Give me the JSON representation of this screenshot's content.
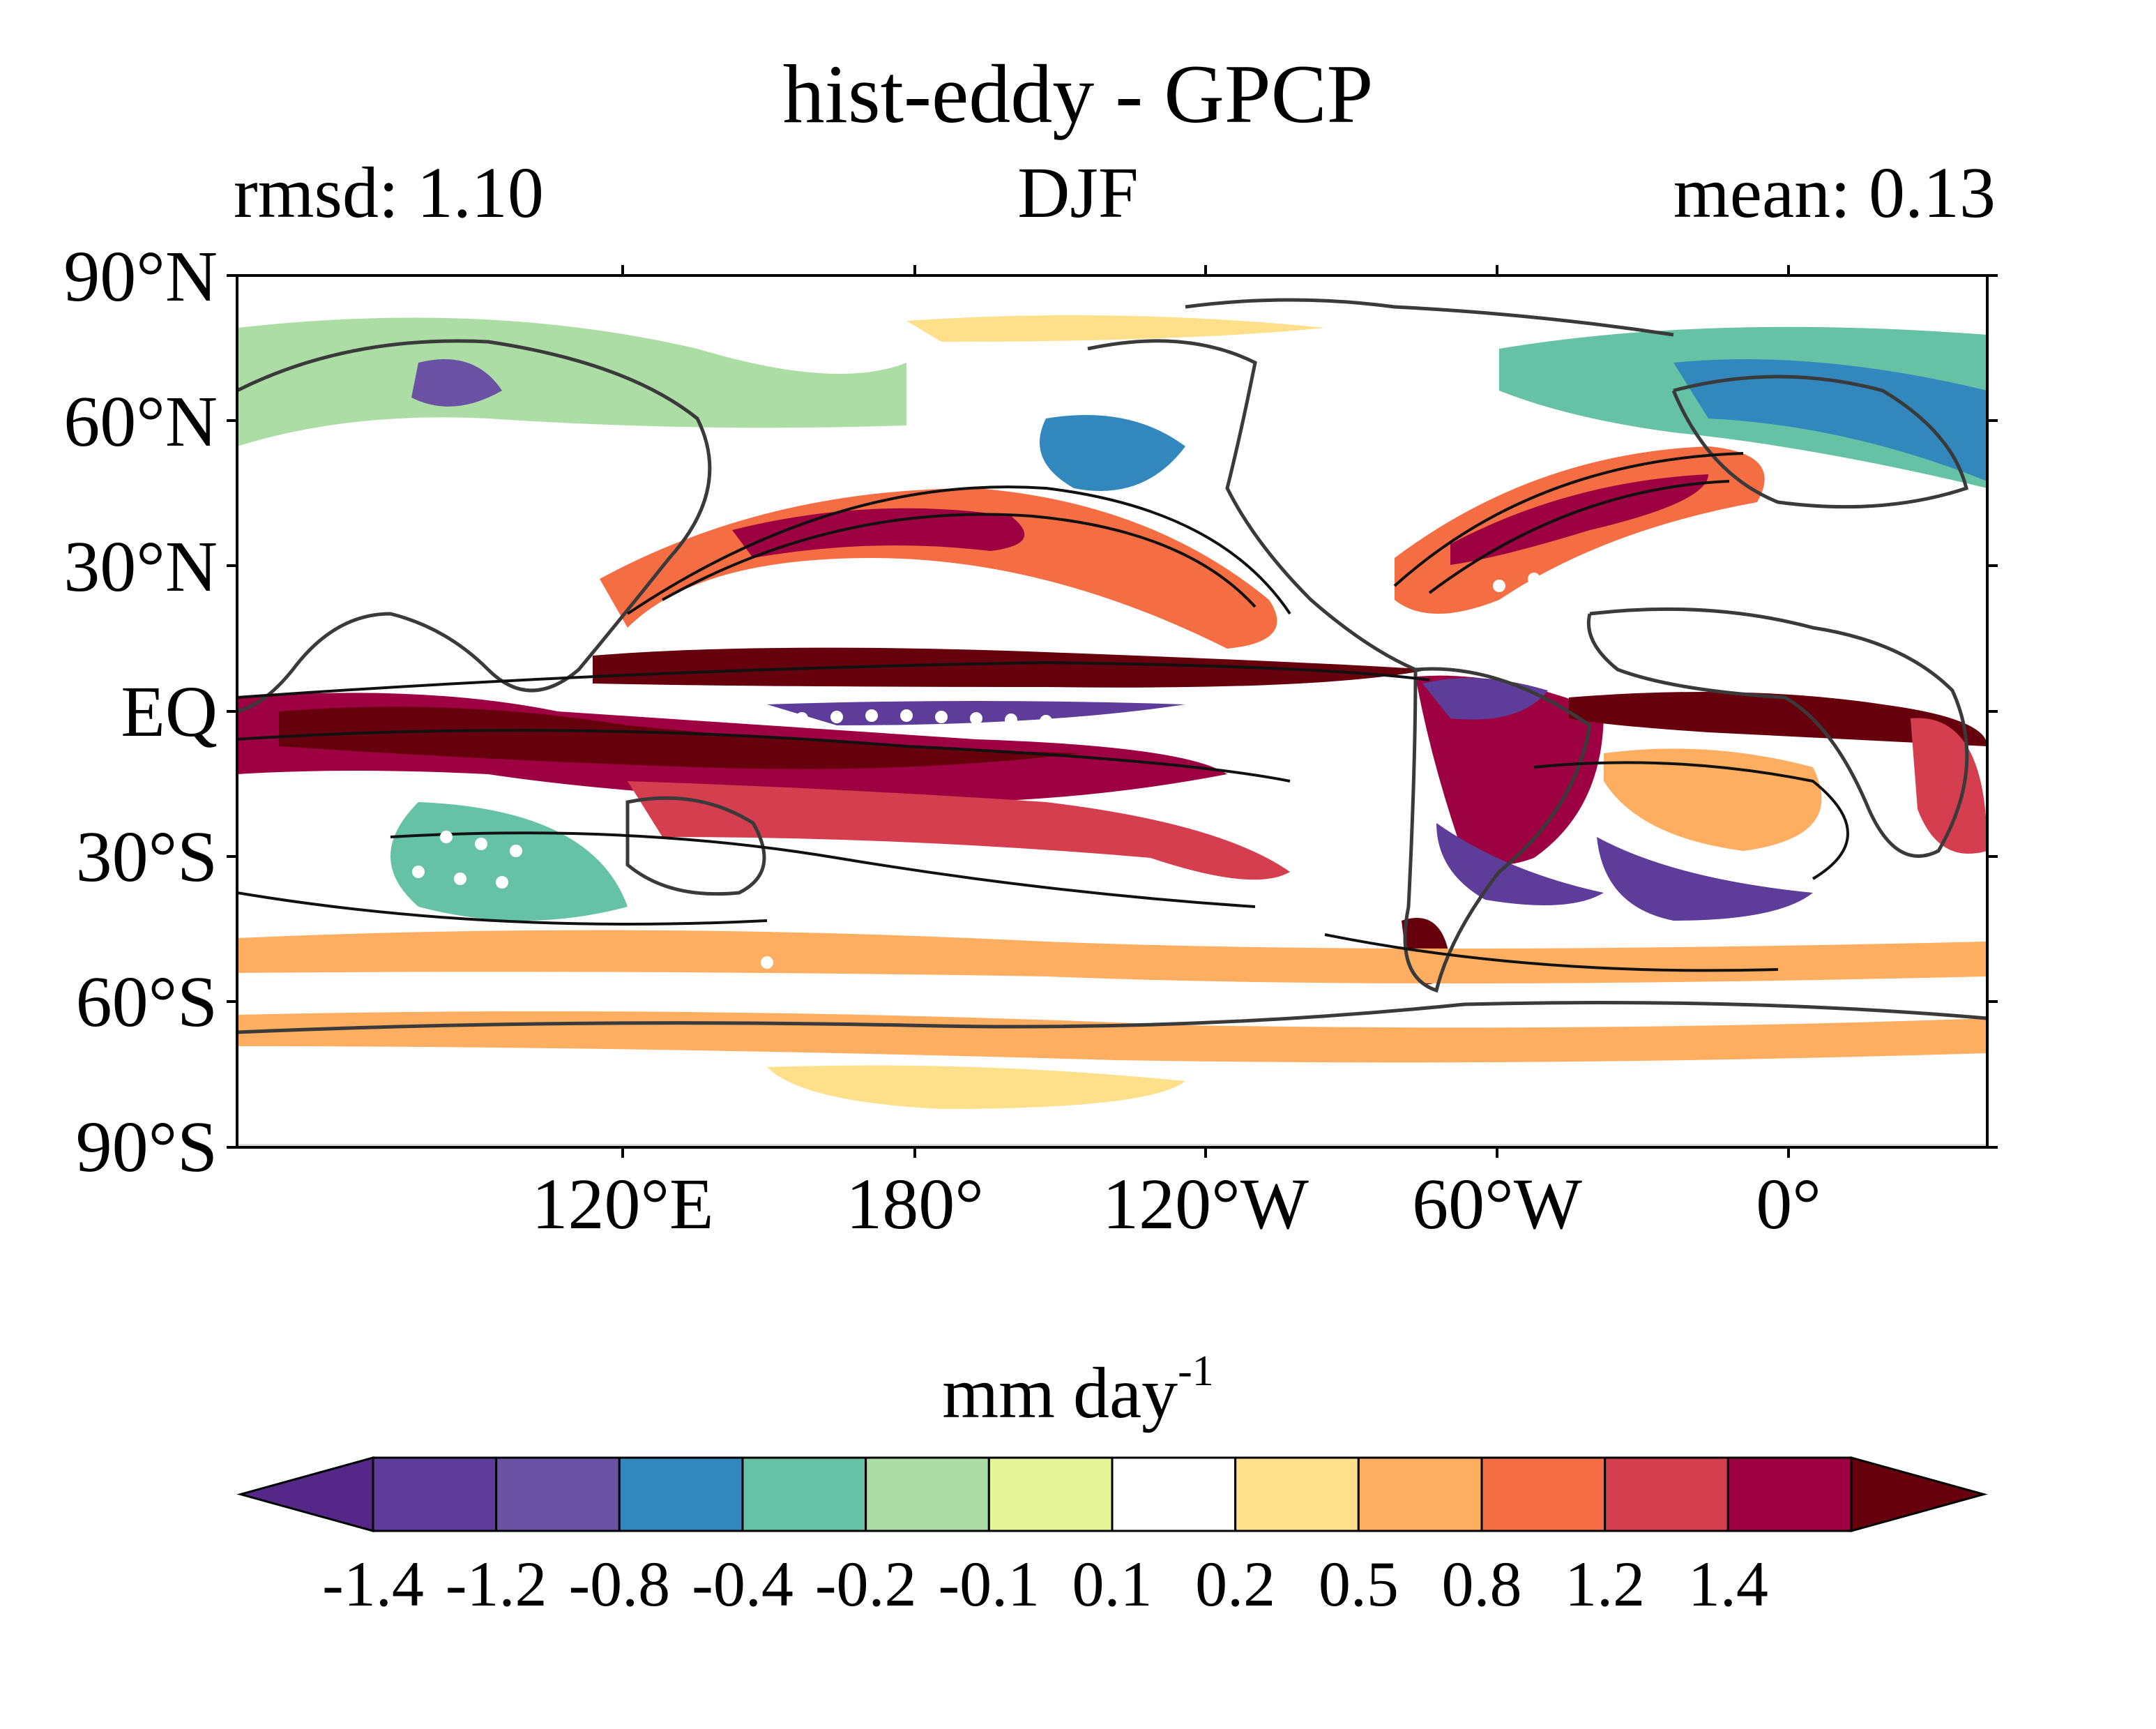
{
  "title": "hist-eddy - GPCP",
  "subtitle": {
    "left": "rmsd: 1.10",
    "center": "DJF",
    "right": "mean: 0.13"
  },
  "axes": {
    "lat_labels": [
      "90°N",
      "60°N",
      "30°N",
      "EQ",
      "30°S",
      "60°S",
      "90°S"
    ],
    "lon_labels": [
      "120°E",
      "180°",
      "120°W",
      "60°W",
      "0°"
    ]
  },
  "colorbar": {
    "units_text": "mm day",
    "units_exponent": "-1",
    "ticks": [
      "-1.4",
      "-1.2",
      "-0.8",
      "-0.4",
      "-0.2",
      "-0.1",
      "0.1",
      "0.2",
      "0.5",
      "0.8",
      "1.2",
      "1.4"
    ],
    "colors": [
      "#5e3c99",
      "#6a51a3",
      "#3288bd",
      "#66c2a5",
      "#abdda4",
      "#e6f598",
      "#ffffff",
      "#fee08b",
      "#fdae61",
      "#f46d43",
      "#d53e4f",
      "#9e0142"
    ],
    "extend_low_color": "#542788",
    "extend_high_color": "#67000d"
  },
  "map": {
    "land_outline_color": "#3a3a3a",
    "stipple_color": "#ffffff",
    "contour_color": "#111111"
  }
}
